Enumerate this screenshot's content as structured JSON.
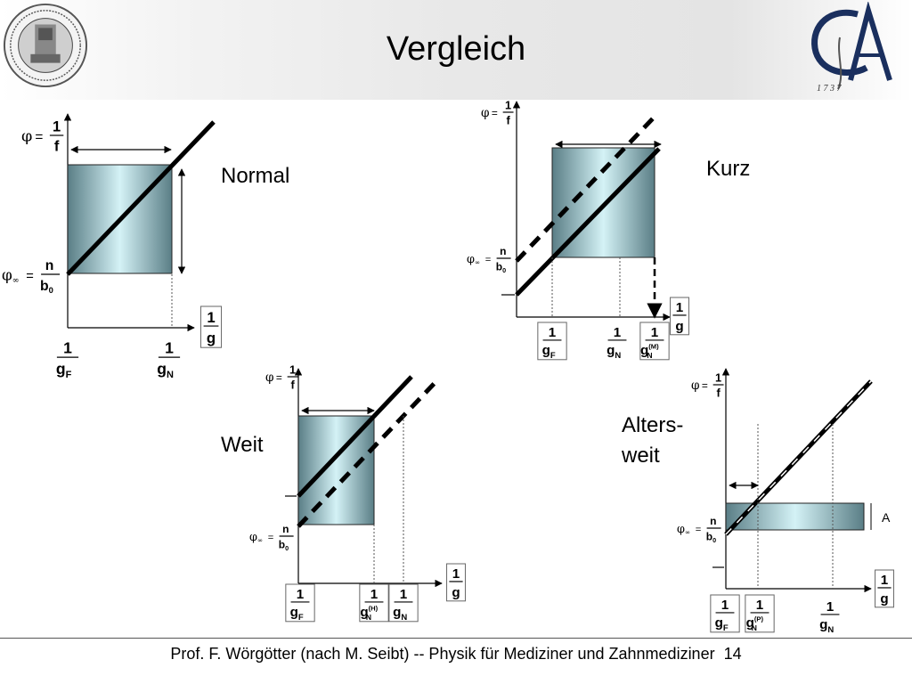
{
  "header": {
    "title": "Vergleich",
    "seal_text": "SIGILLUM ACADEMIAE GEORGIAE AUGUSTAE",
    "logo_text": "GA 1737"
  },
  "footer": {
    "text": "Prof. F. Wörgötter (nach M. Seibt) -- Physik für Mediziner und Zahnmediziner",
    "page": "14"
  },
  "panels": {
    "normal": {
      "label": "Normal"
    },
    "kurz": {
      "label": "Kurz"
    },
    "weit": {
      "label": "Weit"
    },
    "altersweit": {
      "label_line1": "Alters-",
      "label_line2": "weit"
    }
  },
  "symbols": {
    "phi": "φ",
    "phi_inf": "φ",
    "inf_sub": "∞",
    "eq": "=",
    "one": "1",
    "f": "f",
    "n": "n",
    "b": "b",
    "b_sub": "0",
    "g": "g",
    "gF_sub": "F",
    "gN_sub": "N",
    "gN_M_sup": "(M)",
    "gN_H_sup": "(H)",
    "gP_sub": "N",
    "gP_sup": "(P)",
    "A": "A"
  },
  "colors": {
    "box_edge": "#5a7e86",
    "box_center": "#d4f2f6",
    "line": "#000000"
  }
}
